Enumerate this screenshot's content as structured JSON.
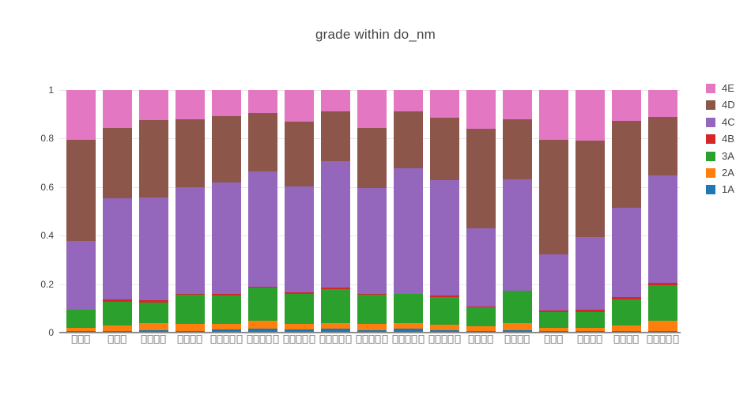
{
  "title": "grade within do_nm",
  "y_axis": {
    "tick_labels": [
      "0",
      "0.2",
      "0.4",
      "0.6",
      "0.8",
      "1"
    ],
    "tick_values": [
      0,
      0.2,
      0.4,
      0.6,
      0.8,
      1
    ]
  },
  "legend": {
    "items": [
      {
        "label": "4E",
        "color": "#e377c2"
      },
      {
        "label": "4D",
        "color": "#8c564b"
      },
      {
        "label": "4C",
        "color": "#9467bd"
      },
      {
        "label": "4B",
        "color": "#d62728"
      },
      {
        "label": "3A",
        "color": "#2ca02c"
      },
      {
        "label": "2A",
        "color": "#ff7f0e"
      },
      {
        "label": "1A",
        "color": "#1f77b4"
      }
    ]
  },
  "chart_data": {
    "type": "bar",
    "stacked": true,
    "normalized": true,
    "title": "grade within do_nm",
    "xlabel": "",
    "ylabel": "",
    "ylim": [
      0,
      1
    ],
    "yticks": [
      0,
      0.2,
      0.4,
      0.6,
      0.8,
      1
    ],
    "grid": true,
    "legend_position": "right",
    "categories": [
      "□□□",
      "□□□",
      "□□□□",
      "□□□□",
      "□□□□□",
      "□□□□□",
      "□□□□□",
      "□□□□□",
      "□□□□□",
      "□□□□□",
      "□□□□□",
      "□□□□",
      "□□□□",
      "□□□",
      "□□□□",
      "□□□□",
      "□□□□□"
    ],
    "category_glyphs_note": "x tick labels render as missing-glyph boxes in the screenshot",
    "category_box_counts": [
      3,
      3,
      4,
      4,
      5,
      5,
      5,
      5,
      5,
      5,
      5,
      4,
      4,
      3,
      4,
      4,
      5
    ],
    "series": [
      {
        "name": "1A",
        "color": "#1f77b4",
        "values": [
          0.006,
          0.006,
          0.011,
          0.008,
          0.012,
          0.017,
          0.012,
          0.017,
          0.011,
          0.015,
          0.008,
          0.006,
          0.01,
          0.006,
          0.007,
          0.006,
          0.007
        ]
      },
      {
        "name": "2A",
        "color": "#ff7f0e",
        "values": [
          0.015,
          0.024,
          0.027,
          0.028,
          0.024,
          0.033,
          0.025,
          0.023,
          0.025,
          0.024,
          0.025,
          0.019,
          0.03,
          0.013,
          0.012,
          0.024,
          0.042
        ]
      },
      {
        "name": "3A",
        "color": "#2ca02c",
        "values": [
          0.072,
          0.096,
          0.087,
          0.119,
          0.118,
          0.137,
          0.121,
          0.14,
          0.119,
          0.119,
          0.114,
          0.08,
          0.131,
          0.064,
          0.067,
          0.107,
          0.147
        ]
      },
      {
        "name": "4B",
        "color": "#d62728",
        "values": [
          0.002,
          0.011,
          0.009,
          0.006,
          0.007,
          0.002,
          0.009,
          0.005,
          0.006,
          0.003,
          0.006,
          0.002,
          0.003,
          0.007,
          0.008,
          0.008,
          0.009
        ]
      },
      {
        "name": "4C",
        "color": "#9467bd",
        "values": [
          0.284,
          0.416,
          0.423,
          0.438,
          0.458,
          0.475,
          0.435,
          0.521,
          0.434,
          0.518,
          0.474,
          0.324,
          0.458,
          0.234,
          0.301,
          0.37,
          0.444
        ]
      },
      {
        "name": "4D",
        "color": "#8c564b",
        "values": [
          0.416,
          0.292,
          0.318,
          0.281,
          0.272,
          0.24,
          0.267,
          0.205,
          0.25,
          0.232,
          0.259,
          0.408,
          0.248,
          0.471,
          0.396,
          0.357,
          0.24
        ]
      },
      {
        "name": "4E",
        "color": "#e377c2",
        "values": [
          0.205,
          0.155,
          0.125,
          0.12,
          0.109,
          0.096,
          0.131,
          0.089,
          0.155,
          0.089,
          0.114,
          0.161,
          0.12,
          0.205,
          0.209,
          0.128,
          0.111
        ]
      }
    ]
  }
}
